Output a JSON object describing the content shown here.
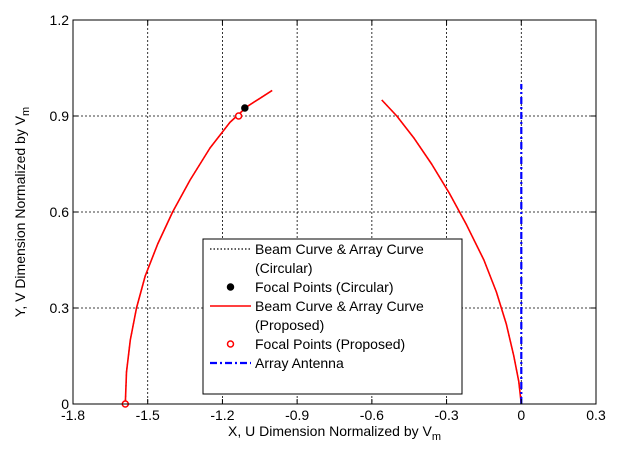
{
  "chart_data": {
    "type": "line",
    "title": "",
    "xlabel": "X, U Dimension Normalized by V",
    "xlabel_sub": "m",
    "ylabel": "Y, V Dimension Normalized by V",
    "ylabel_sub": "m",
    "xlim": [
      -1.8,
      0.3
    ],
    "ylim": [
      0,
      1.2
    ],
    "xticks": [
      -1.8,
      -1.5,
      -1.2,
      -0.9,
      -0.6,
      -0.3,
      0,
      0.3
    ],
    "yticks": [
      0,
      0.3,
      0.6,
      0.9,
      1.2
    ],
    "xtick_labels": [
      "-1.8",
      "-1.5",
      "-1.2",
      "-0.9",
      "-0.6",
      "-0.3",
      "0",
      "0.3"
    ],
    "ytick_labels": [
      "0",
      "0.3",
      "0.6",
      "0.9",
      "1.2"
    ],
    "grid": true,
    "legend_position": "bottom-center",
    "legend": [
      {
        "text": [
          "Beam Curve & Array Curve",
          "(Circular)"
        ],
        "style": "dotted",
        "color": "#000000"
      },
      {
        "text": [
          "Focal Points (Circular)"
        ],
        "style": "filled-marker",
        "color": "#000000"
      },
      {
        "text": [
          "Beam Curve & Array Curve",
          "(Proposed)"
        ],
        "style": "solid",
        "color": "#ff0000"
      },
      {
        "text": [
          "Focal Points (Proposed)"
        ],
        "style": "open-marker",
        "color": "#ff0000"
      },
      {
        "text": [
          "Array Antenna"
        ],
        "style": "dashdot",
        "color": "#0000ff"
      }
    ],
    "series": [
      {
        "style": "dotted",
        "color": "#000000",
        "x": [
          -1.59,
          -1.585,
          -1.57,
          -1.545,
          -1.51,
          -1.46,
          -1.4,
          -1.33,
          -1.25,
          -1.17,
          -1.1,
          -1.05,
          -1.0
        ],
        "y": [
          0.0,
          0.1,
          0.2,
          0.3,
          0.4,
          0.5,
          0.6,
          0.7,
          0.8,
          0.88,
          0.93,
          0.955,
          0.98
        ]
      },
      {
        "style": "dotted",
        "color": "#000000",
        "x": [
          -0.56,
          -0.5,
          -0.43,
          -0.36,
          -0.29,
          -0.22,
          -0.15,
          -0.1,
          -0.06,
          -0.03,
          -0.01,
          0.0
        ],
        "y": [
          0.95,
          0.9,
          0.83,
          0.75,
          0.66,
          0.56,
          0.45,
          0.35,
          0.25,
          0.15,
          0.07,
          0.0
        ]
      },
      {
        "style": "solid",
        "color": "#ff0000",
        "x": [
          -1.59,
          -1.585,
          -1.57,
          -1.545,
          -1.51,
          -1.46,
          -1.4,
          -1.33,
          -1.25,
          -1.17,
          -1.1,
          -1.05,
          -1.0
        ],
        "y": [
          0.0,
          0.1,
          0.2,
          0.3,
          0.4,
          0.5,
          0.6,
          0.7,
          0.8,
          0.88,
          0.93,
          0.955,
          0.98
        ]
      },
      {
        "style": "solid",
        "color": "#ff0000",
        "x": [
          -0.56,
          -0.5,
          -0.43,
          -0.36,
          -0.29,
          -0.22,
          -0.15,
          -0.1,
          -0.06,
          -0.03,
          -0.01,
          0.0
        ],
        "y": [
          0.95,
          0.9,
          0.83,
          0.75,
          0.66,
          0.56,
          0.45,
          0.35,
          0.25,
          0.15,
          0.07,
          0.0
        ]
      },
      {
        "style": "dashdot",
        "color": "#0000ff",
        "x": [
          0.0,
          0.0
        ],
        "y": [
          0.0,
          1.0
        ]
      }
    ],
    "points": [
      {
        "style": "filled-marker",
        "color": "#000000",
        "x": -1.11,
        "y": 0.925
      },
      {
        "style": "open-marker",
        "color": "#ff0000",
        "x": -1.135,
        "y": 0.9
      },
      {
        "style": "open-marker",
        "color": "#ff0000",
        "x": -1.59,
        "y": 0.0
      }
    ]
  }
}
